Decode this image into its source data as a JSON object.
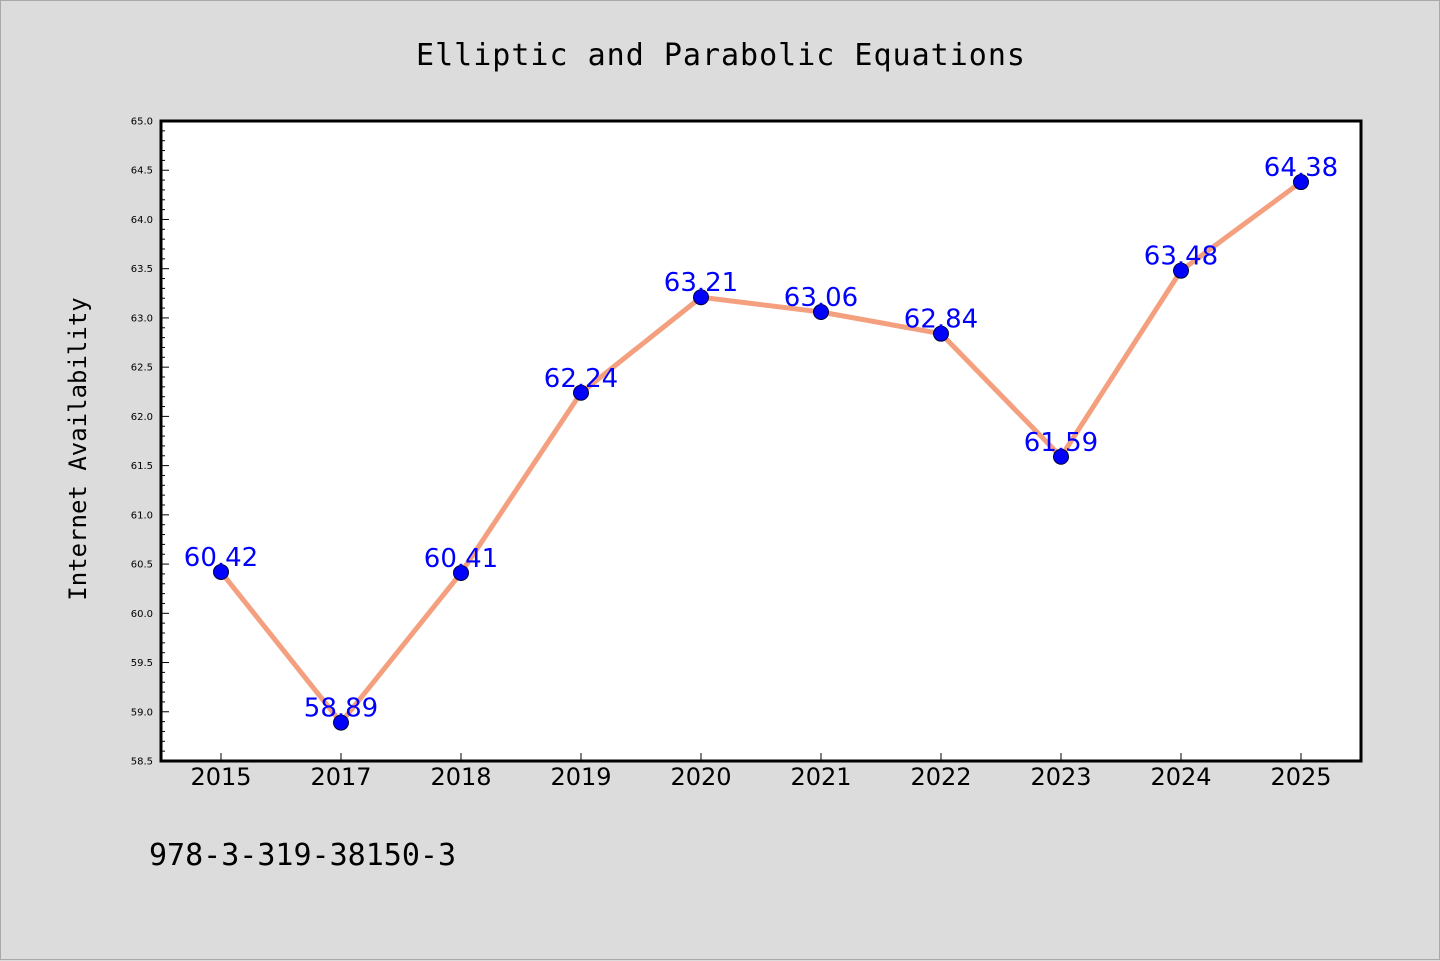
{
  "chart_data": {
    "type": "line",
    "title": "Elliptic and Parabolic Equations",
    "xlabel": "",
    "ylabel": "Internet Availability",
    "categories": [
      "2015",
      "2017",
      "2018",
      "2019",
      "2020",
      "2021",
      "2022",
      "2023",
      "2024",
      "2025"
    ],
    "series": [
      {
        "values": [
          60.42,
          58.89,
          60.41,
          62.24,
          63.21,
          63.06,
          62.84,
          61.59,
          63.48,
          64.38
        ],
        "line_color": "#f4a07f",
        "marker_color": "#0000ff"
      }
    ],
    "ylim": [
      58.5,
      65.0
    ],
    "yticks": [
      "58.5",
      "59.0",
      "59.5",
      "60.0",
      "60.5",
      "61.0",
      "61.5",
      "62.0",
      "62.5",
      "63.0",
      "63.5",
      "64.0",
      "64.5",
      "65.0"
    ],
    "data_labels": [
      "60.42",
      "58.89",
      "60.41",
      "62.24",
      "63.21",
      "63.06",
      "62.84",
      "61.59",
      "63.48",
      "64.38"
    ],
    "grid": false,
    "legend": "none",
    "background": "#dcdcdc",
    "plot_background": "#ffffff"
  },
  "footer": {
    "text": "978-3-319-38150-3"
  }
}
